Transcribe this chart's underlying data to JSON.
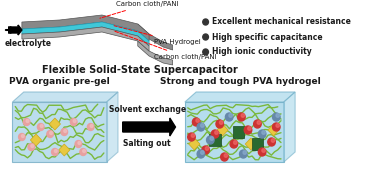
{
  "bg_color": "#ffffff",
  "title_top_left": "PVA organic pre-gel",
  "title_top_right": "Strong and tough PVA hydrogel",
  "title_bottom": "Flexible Solid-State Supercapacitor",
  "arrow_text1": "Solvent exchange",
  "arrow_text2": "Salting out",
  "box_color": "#a8d8e8",
  "box_edge_color": "#7ab8cc",
  "bullet_items": [
    "High ionic conductivity",
    "High specific capacitance",
    "Excellent mechanical resistance"
  ],
  "label_carbon_cloth": "Carbon cloth/PANI",
  "label_pva": "PVA Hydrogel",
  "label_carbon_cloth2": "Carbon cloth/PANI",
  "label_electrolyte": "electrolyte",
  "font_size_title": 7,
  "font_size_small": 5.5
}
